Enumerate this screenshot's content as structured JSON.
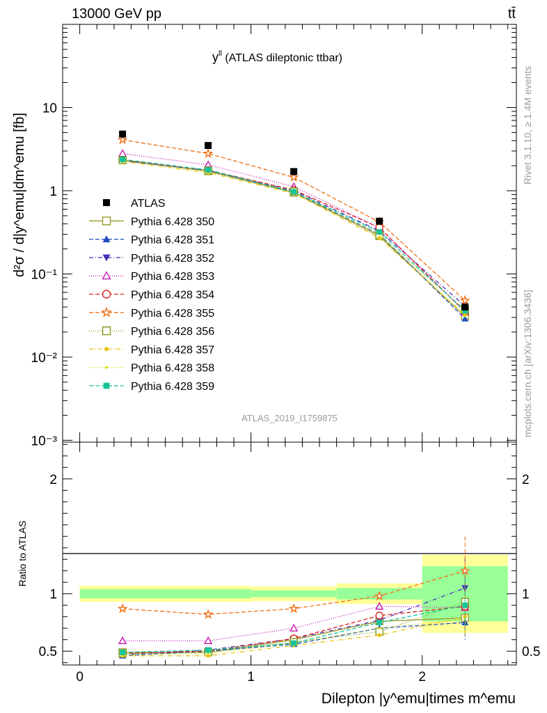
{
  "header": {
    "energy_label": "13000 GeV pp",
    "process_label": "tt̄",
    "side_rivet": "Rivet 3.1.10, ≥ 1.4M events",
    "side_mcplots": "mcplots.cern.ch [arXiv:1306.3436]",
    "analysis_id": "ATLAS_2019_I1759875"
  },
  "chart_data": [
    {
      "type": "scatter",
      "panel": "main",
      "title_main": "y",
      "title_sup": "ll",
      "title_rest": " (ATLAS dileptonic ttbar)",
      "ylabel": "d²σ / d|y^emu|dm^emu [fb]",
      "yscale": "log",
      "ylim": [
        0.00095,
        100
      ],
      "xlim": [
        -0.1,
        2.55
      ],
      "y_tick_labels": [
        "10⁻³",
        "10⁻²",
        "10⁻¹",
        "1",
        "10"
      ],
      "y_tick_values": [
        0.001,
        0.01,
        0.1,
        1,
        10
      ],
      "x": [
        0.25,
        0.75,
        1.25,
        1.75,
        2.25
      ],
      "data_series": {
        "name": "ATLAS",
        "color": "#000000",
        "values": [
          4.8,
          3.5,
          1.7,
          0.43,
          0.04
        ]
      },
      "series": [
        {
          "name": "Pythia 6.428 350",
          "color": "#9a9a2a",
          "marker": "square-open",
          "dash": "",
          "values": [
            2.35,
            1.72,
            0.95,
            0.285,
            0.031
          ]
        },
        {
          "name": "Pythia 6.428 351",
          "color": "#1f4fc1",
          "marker": "triangle-up",
          "dash": "6,3",
          "values": [
            2.3,
            1.75,
            0.96,
            0.3,
            0.029
          ]
        },
        {
          "name": "Pythia 6.428 352",
          "color": "#4a2db8",
          "marker": "triangle-down",
          "dash": "6,3,1,3",
          "values": [
            2.3,
            1.75,
            1.0,
            0.33,
            0.041
          ]
        },
        {
          "name": "Pythia 6.428 353",
          "color": "#c71ab0",
          "marker": "triangle-open",
          "dash": "1,2",
          "values": [
            2.8,
            2.05,
            1.12,
            0.36,
            0.035
          ]
        },
        {
          "name": "Pythia 6.428 354",
          "color": "#e02020",
          "marker": "circle-open",
          "dash": "6,3",
          "values": [
            2.35,
            1.77,
            1.02,
            0.36,
            0.035
          ]
        },
        {
          "name": "Pythia 6.428 355",
          "color": "#f07016",
          "marker": "star-open",
          "dash": "6,3",
          "values": [
            4.1,
            2.8,
            1.45,
            0.42,
            0.048
          ]
        },
        {
          "name": "Pythia 6.428 356",
          "color": "#7a9a16",
          "marker": "square-open",
          "dash": "1,2",
          "values": [
            2.33,
            1.74,
            0.98,
            0.29,
            0.037
          ]
        },
        {
          "name": "Pythia 6.428 357",
          "color": "#e8c30c",
          "marker": "dot",
          "dash": "6,3,1,3",
          "values": [
            2.25,
            1.65,
            0.93,
            0.27,
            0.032
          ]
        },
        {
          "name": "Pythia 6.428 358",
          "color": "#d6dc1a",
          "marker": "dot-small",
          "dash": "1,2",
          "values": [
            2.28,
            1.7,
            0.95,
            0.3,
            0.031
          ]
        },
        {
          "name": "Pythia 6.428 359",
          "color": "#18c49a",
          "marker": "square",
          "dash": "6,3",
          "values": [
            2.38,
            1.78,
            0.97,
            0.32,
            0.036
          ]
        }
      ]
    },
    {
      "type": "line",
      "panel": "ratio",
      "ylabel": "Ratio to ATLAS",
      "xlabel": "Dilepton |y^emu|times m^emu",
      "ylim": [
        0.38,
        2.32
      ],
      "xlim": [
        -0.1,
        2.55
      ],
      "y_tick_values": [
        0.5,
        1,
        2
      ],
      "y_tick_labels": [
        "0.5",
        "1",
        "2"
      ],
      "x_tick_values": [
        0,
        1,
        2
      ],
      "x_tick_labels": [
        "0",
        "1",
        "2"
      ],
      "x": [
        0.25,
        0.75,
        1.25,
        1.75,
        2.25
      ],
      "bins": [
        [
          0,
          1
        ],
        [
          1,
          1.5
        ],
        [
          1.5,
          2
        ],
        [
          2,
          2.5
        ]
      ],
      "stat_band": [
        0.04,
        0.03,
        0.05,
        0.24
      ],
      "total_band": [
        0.07,
        0.065,
        0.09,
        0.34
      ],
      "series_ratios": [
        [
          0.49,
          0.49,
          0.6,
          0.76,
          0.79
        ],
        [
          0.46,
          0.5,
          0.56,
          0.7,
          0.75
        ],
        [
          0.47,
          0.51,
          0.61,
          0.77,
          1.05
        ],
        [
          0.59,
          0.59,
          0.7,
          0.89,
          0.88
        ],
        [
          0.48,
          0.5,
          0.61,
          0.81,
          0.89
        ],
        [
          0.87,
          0.82,
          0.87,
          0.98,
          1.2
        ],
        [
          0.48,
          0.49,
          0.58,
          0.67,
          0.93
        ],
        [
          0.46,
          0.46,
          0.55,
          0.64,
          0.8
        ],
        [
          0.47,
          0.48,
          0.57,
          0.7,
          0.78
        ],
        [
          0.49,
          0.51,
          0.57,
          0.75,
          0.9
        ]
      ]
    }
  ]
}
